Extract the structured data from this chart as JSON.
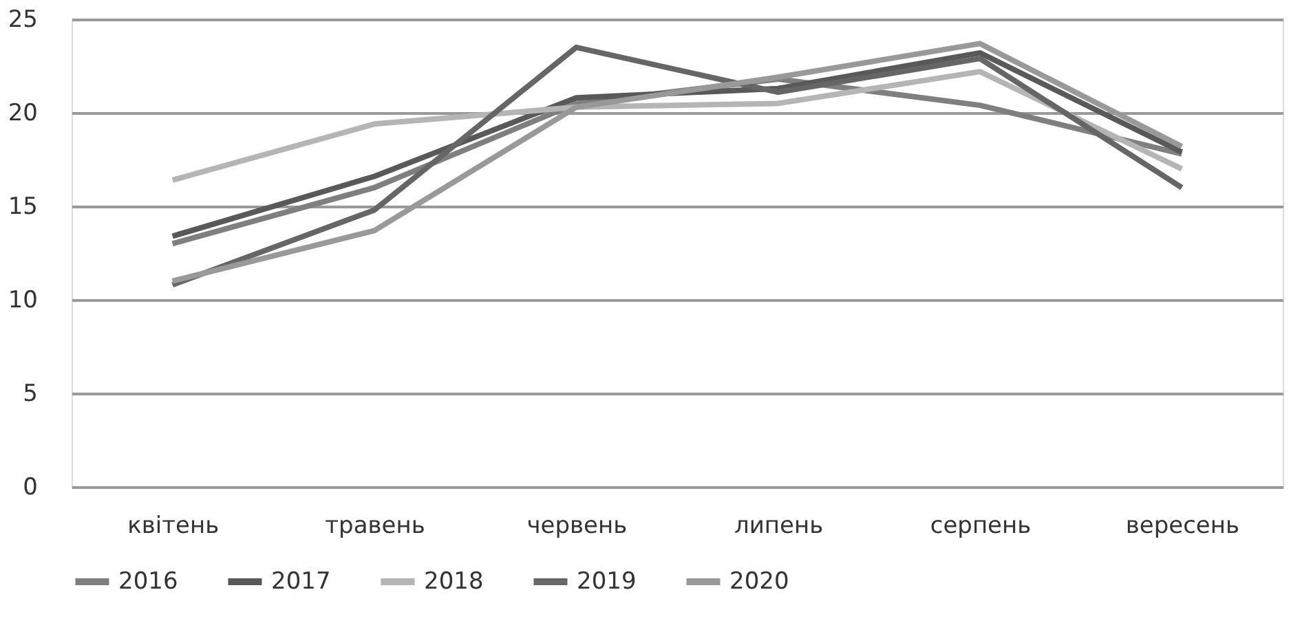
{
  "chart_data": {
    "type": "line",
    "categories": [
      "квітень",
      "травень",
      "червень",
      "липень",
      "серпень",
      "вересень"
    ],
    "series": [
      {
        "name": "2016",
        "color": "#7f7f7f",
        "values": [
          13.0,
          16.0,
          20.5,
          21.8,
          20.4,
          17.8
        ]
      },
      {
        "name": "2017",
        "color": "#595959",
        "values": [
          13.4,
          16.6,
          20.8,
          21.3,
          23.2,
          17.9
        ]
      },
      {
        "name": "2018",
        "color": "#b5b5b5",
        "values": [
          16.4,
          19.4,
          20.3,
          20.5,
          22.2,
          17.0
        ]
      },
      {
        "name": "2019",
        "color": "#666666",
        "values": [
          10.8,
          14.8,
          23.5,
          21.1,
          22.9,
          16.0
        ]
      },
      {
        "name": "2020",
        "color": "#999999",
        "values": [
          11.0,
          13.7,
          20.3,
          21.9,
          23.7,
          18.2
        ]
      }
    ],
    "ylim": [
      0,
      25
    ],
    "yticks": [
      0,
      5,
      10,
      15,
      20,
      25
    ],
    "grid": "y",
    "legend": "bottom",
    "marker": "none",
    "line_style": "solid"
  }
}
